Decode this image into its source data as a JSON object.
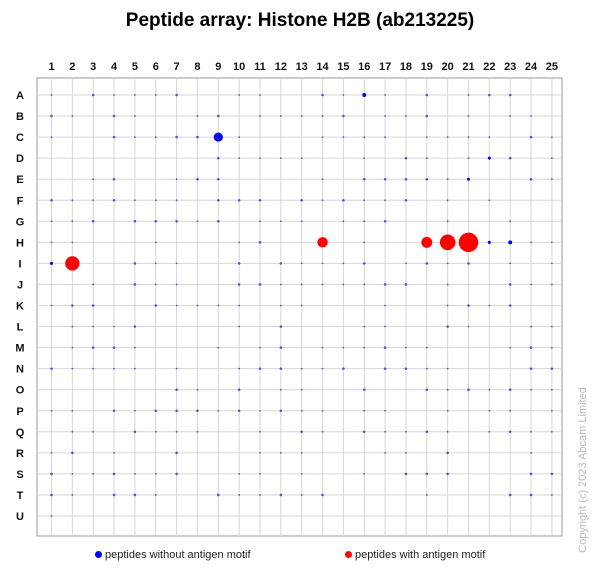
{
  "chart_data": {
    "type": "scatter",
    "title": "Peptide array:  Histone H2B (ab213225)",
    "columns": [
      "1",
      "2",
      "3",
      "4",
      "5",
      "6",
      "7",
      "8",
      "9",
      "10",
      "11",
      "12",
      "13",
      "14",
      "15",
      "16",
      "17",
      "18",
      "19",
      "20",
      "21",
      "22",
      "23",
      "24",
      "25"
    ],
    "rows": [
      "A",
      "B",
      "C",
      "D",
      "E",
      "F",
      "G",
      "H",
      "I",
      "J",
      "K",
      "L",
      "M",
      "N",
      "O",
      "P",
      "Q",
      "R",
      "S",
      "T",
      "U"
    ],
    "grid": true,
    "legend_placement": "bottom",
    "series": [
      {
        "name": "peptides without antigen motif",
        "color": "#0000ff",
        "points": [
          {
            "col": 16,
            "row": "A",
            "value": 0.15
          },
          {
            "col": 9,
            "row": "C",
            "value": 0.35
          },
          {
            "col": 22,
            "row": "H",
            "value": 0.12
          },
          {
            "col": 23,
            "row": "H",
            "value": 0.15
          },
          {
            "col": 1,
            "row": "I",
            "value": 0.12
          },
          {
            "col": 21,
            "row": "E",
            "value": 0.06
          },
          {
            "col": 22,
            "row": "D",
            "value": 0.05
          }
        ]
      },
      {
        "name": "peptides with antigen motif",
        "color": "#ff0000",
        "points": [
          {
            "col": 2,
            "row": "I",
            "value": 0.55
          },
          {
            "col": 14,
            "row": "H",
            "value": 0.4
          },
          {
            "col": 19,
            "row": "H",
            "value": 0.42
          },
          {
            "col": 20,
            "row": "H",
            "value": 0.6
          },
          {
            "col": 21,
            "row": "H",
            "value": 0.75
          }
        ]
      }
    ],
    "trace_color": "#2828c8"
  },
  "legend": {
    "without_label": "peptides without antigen motif",
    "with_label": "peptides with antigen motif"
  },
  "watermark": "Copyright (c) 2023 Abcam Limited"
}
